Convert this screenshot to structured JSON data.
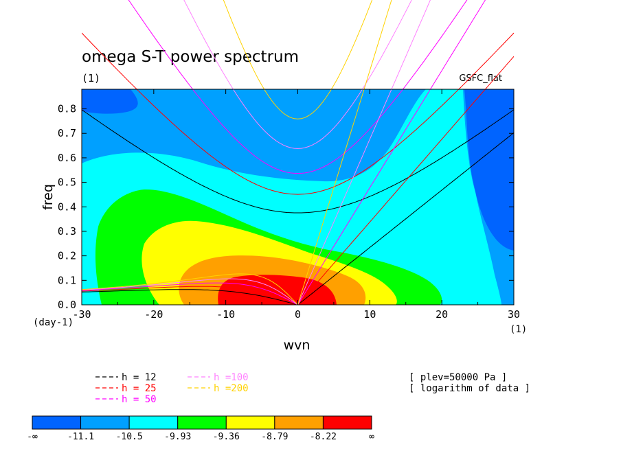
{
  "chart_data": {
    "type": "contour",
    "title": "omega S-T power spectrum",
    "subtitle": "(1)",
    "source_label": "GSFC_flat",
    "xlabel": "wvn",
    "ylabel": "freq",
    "x_unit_label": "(1)",
    "y_unit_label": "(day-1)",
    "xlim": [
      -30,
      30
    ],
    "ylim": [
      0,
      0.88
    ],
    "x_ticks": [
      -30,
      -20,
      -10,
      0,
      10,
      20,
      30
    ],
    "x_tick_labels": [
      "-30",
      "-20",
      "-10",
      "0",
      "10",
      "20",
      "30"
    ],
    "y_ticks": [
      0,
      0.1,
      0.2,
      0.3,
      0.4,
      0.5,
      0.6,
      0.7,
      0.8
    ],
    "y_tick_labels": [
      "0.0",
      "0.1",
      "0.2",
      "0.3",
      "0.4",
      "0.5",
      "0.6",
      "0.7",
      "0.8"
    ],
    "levels_description": "filled contours of log10 power",
    "color_levels": [
      {
        "label_low": "-∞",
        "label_high": "-11.1",
        "color": "#0064ff"
      },
      {
        "label_low": "-11.1",
        "label_high": "-10.5",
        "color": "#00a0ff"
      },
      {
        "label_low": "-10.5",
        "label_high": "-9.93",
        "color": "#00ffff"
      },
      {
        "label_low": "-9.93",
        "label_high": "-9.36",
        "color": "#00ff00"
      },
      {
        "label_low": "-9.36",
        "label_high": "-8.79",
        "color": "#ffff00"
      },
      {
        "label_low": "-8.79",
        "label_high": "-8.22",
        "color": "#ffa000"
      },
      {
        "label_low": "-8.22",
        "label_high": "∞",
        "color": "#ff0000"
      }
    ],
    "colorbar_tick_labels": [
      "-∞",
      "-11.1",
      "-10.5",
      "-9.93",
      "-9.36",
      "-8.79",
      "-8.22",
      "∞"
    ],
    "dispersion_curves": [
      {
        "name": "h = 12",
        "h": 12,
        "color": "#000000"
      },
      {
        "name": "h = 25",
        "h": 25,
        "color": "#ff0000"
      },
      {
        "name": "h = 50",
        "h": 50,
        "color": "#ff00ff"
      },
      {
        "name": "h =100",
        "h": 100,
        "color": "#ff80ff"
      },
      {
        "name": "h =200",
        "h": 200,
        "color": "#ffd200"
      }
    ],
    "annotations": [
      "[ plev=50000 Pa ]",
      "[ logarithm of data ]"
    ]
  }
}
